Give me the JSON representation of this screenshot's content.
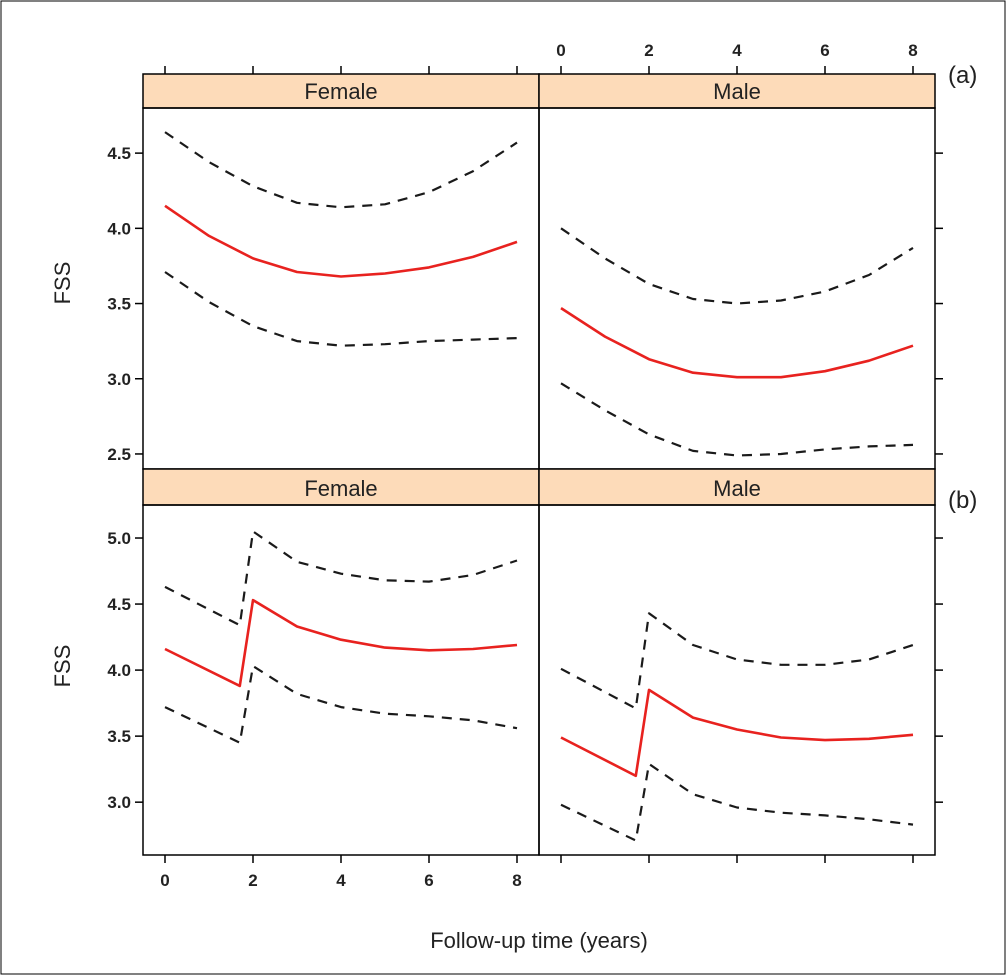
{
  "colors": {
    "strip_fill": "#fddbb9",
    "fitted_line": "#e8221f",
    "ci_line": "#1a1a1a",
    "frame": "#000000"
  },
  "figure": {
    "xlabel": "Follow-up time (years)",
    "ylabel": "FSS",
    "panel_tags": [
      "(a)",
      "(b)"
    ],
    "strips": [
      "Female",
      "Male"
    ]
  },
  "chart_data": [
    {
      "type": "line",
      "panel": "(a)",
      "title": "",
      "xlabel": "Follow-up time (years)",
      "ylabel": "FSS",
      "xlim": [
        0,
        8
      ],
      "ylim": [
        2.4,
        4.8
      ],
      "xticks": [
        0,
        2,
        4,
        6,
        8
      ],
      "yticks": [
        2.5,
        3.0,
        3.5,
        4.0,
        4.5
      ],
      "ytick_labels": [
        "2.5",
        "3.0",
        "3.5",
        "4.0",
        "4.5"
      ],
      "grid": false,
      "facets": [
        {
          "strip": "Female",
          "x": [
            0,
            1,
            2,
            3,
            4,
            5,
            6,
            7,
            8
          ],
          "series": [
            {
              "role": "upper",
              "style": "dashed",
              "values": [
                4.64,
                4.44,
                4.28,
                4.17,
                4.14,
                4.16,
                4.24,
                4.38,
                4.57
              ]
            },
            {
              "role": "fitted",
              "style": "solid",
              "values": [
                4.15,
                3.95,
                3.8,
                3.71,
                3.68,
                3.7,
                3.74,
                3.81,
                3.91
              ]
            },
            {
              "role": "lower",
              "style": "dashed",
              "values": [
                3.71,
                3.51,
                3.35,
                3.25,
                3.22,
                3.23,
                3.25,
                3.26,
                3.27
              ]
            }
          ]
        },
        {
          "strip": "Male",
          "x": [
            0,
            1,
            2,
            3,
            4,
            5,
            6,
            7,
            8
          ],
          "series": [
            {
              "role": "upper",
              "style": "dashed",
              "values": [
                4.0,
                3.8,
                3.63,
                3.53,
                3.5,
                3.52,
                3.58,
                3.69,
                3.87
              ]
            },
            {
              "role": "fitted",
              "style": "solid",
              "values": [
                3.47,
                3.28,
                3.13,
                3.04,
                3.01,
                3.01,
                3.05,
                3.12,
                3.22
              ]
            },
            {
              "role": "lower",
              "style": "dashed",
              "values": [
                2.97,
                2.79,
                2.63,
                2.52,
                2.49,
                2.5,
                2.53,
                2.55,
                2.56
              ]
            }
          ]
        }
      ]
    },
    {
      "type": "line",
      "panel": "(b)",
      "title": "",
      "xlabel": "Follow-up time (years)",
      "ylabel": "FSS",
      "xlim": [
        0,
        8
      ],
      "ylim": [
        2.6,
        5.25
      ],
      "xticks": [
        0,
        2,
        4,
        6,
        8
      ],
      "yticks": [
        3.0,
        3.5,
        4.0,
        4.5,
        5.0
      ],
      "ytick_labels": [
        "3.0",
        "3.5",
        "4.0",
        "4.5",
        "5.0"
      ],
      "grid": false,
      "facets": [
        {
          "strip": "Female",
          "series": [
            {
              "role": "upper",
              "style": "dashed",
              "x": [
                0,
                1.7,
                2,
                3,
                4,
                5,
                6,
                7,
                8
              ],
              "values": [
                4.63,
                4.34,
                5.05,
                4.82,
                4.73,
                4.68,
                4.67,
                4.72,
                4.83
              ]
            },
            {
              "role": "fitted",
              "style": "solid",
              "x": [
                0,
                1.7,
                2,
                3,
                4,
                5,
                6,
                7,
                8
              ],
              "values": [
                4.16,
                3.88,
                4.53,
                4.33,
                4.23,
                4.17,
                4.15,
                4.16,
                4.19
              ]
            },
            {
              "role": "lower",
              "style": "dashed",
              "x": [
                0,
                1.7,
                2,
                3,
                4,
                5,
                6,
                7,
                8
              ],
              "values": [
                3.72,
                3.45,
                4.03,
                3.82,
                3.72,
                3.67,
                3.65,
                3.62,
                3.56
              ]
            }
          ]
        },
        {
          "strip": "Male",
          "series": [
            {
              "role": "upper",
              "style": "dashed",
              "x": [
                0,
                1.7,
                2,
                3,
                4,
                5,
                6,
                7,
                8
              ],
              "values": [
                4.01,
                3.71,
                4.43,
                4.19,
                4.08,
                4.04,
                4.04,
                4.08,
                4.19
              ]
            },
            {
              "role": "fitted",
              "style": "solid",
              "x": [
                0,
                1.7,
                2,
                3,
                4,
                5,
                6,
                7,
                8
              ],
              "values": [
                3.49,
                3.2,
                3.85,
                3.64,
                3.55,
                3.49,
                3.47,
                3.48,
                3.51
              ]
            },
            {
              "role": "lower",
              "style": "dashed",
              "x": [
                0,
                1.7,
                2,
                3,
                4,
                5,
                6,
                7,
                8
              ],
              "values": [
                2.98,
                2.71,
                3.29,
                3.06,
                2.96,
                2.92,
                2.9,
                2.87,
                2.83
              ]
            }
          ]
        }
      ]
    }
  ]
}
